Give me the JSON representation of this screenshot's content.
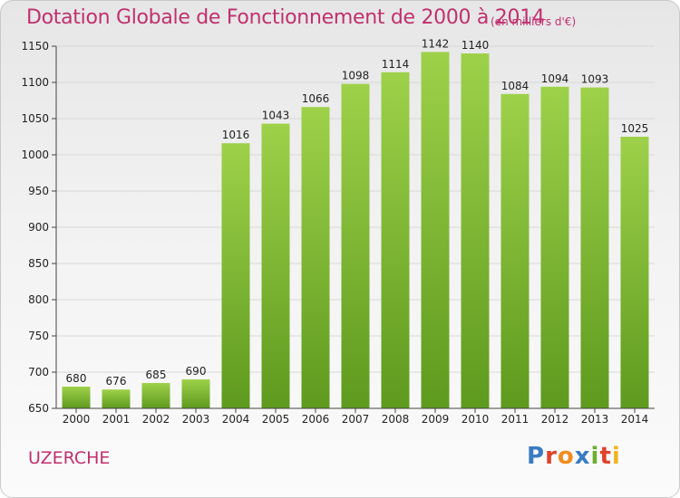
{
  "header": {
    "title": "Dotation Globale de Fonctionnement de 2000 à 2014",
    "unit": "(en milliers d'€)"
  },
  "footer": {
    "commune": "UZERCHE",
    "brand": "Proxiti"
  },
  "colors": {
    "accent": "#c0306f",
    "bar_top": "#9ed14a",
    "bar_bottom": "#5e9a1e",
    "grid": "#d8d8d8"
  },
  "chart_data": {
    "type": "bar",
    "title": "Dotation Globale de Fonctionnement de 2000 à 2014",
    "xlabel": "",
    "ylabel": "",
    "categories": [
      "2000",
      "2001",
      "2002",
      "2003",
      "2004",
      "2005",
      "2006",
      "2007",
      "2008",
      "2009",
      "2010",
      "2011",
      "2012",
      "2013",
      "2014"
    ],
    "values": [
      680,
      676,
      685,
      690,
      1016,
      1043,
      1066,
      1098,
      1114,
      1142,
      1140,
      1084,
      1094,
      1093,
      1025
    ],
    "ylim": [
      650,
      1150
    ],
    "yticks": [
      650,
      700,
      750,
      800,
      850,
      900,
      950,
      1000,
      1050,
      1100,
      1150
    ],
    "grid": true,
    "legend": "none"
  }
}
